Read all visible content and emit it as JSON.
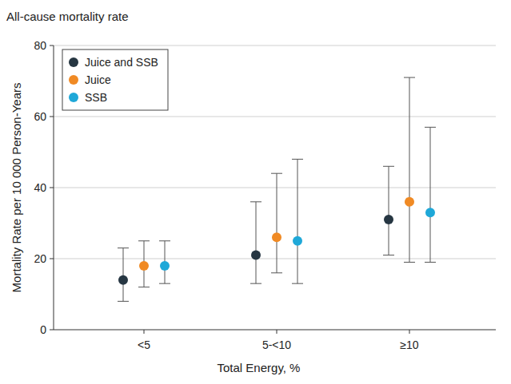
{
  "chart_data": {
    "type": "scatter",
    "title": "All-cause mortality rate",
    "x_label": "Total Energy, %",
    "y_label": "Mortality Rate per 10 000 Person-Years",
    "categories": [
      "<5",
      "5-<10",
      "≥10"
    ],
    "series": [
      {
        "name": "Juice and SSB",
        "color": "#263642",
        "marker": "circle",
        "values": [
          14,
          21,
          31
        ],
        "ci_lower": [
          8,
          13,
          21
        ],
        "ci_upper": [
          23,
          36,
          46
        ]
      },
      {
        "name": "Juice",
        "color": "#f08a24",
        "marker": "circle",
        "values": [
          18,
          26,
          36
        ],
        "ci_lower": [
          12,
          16,
          19
        ],
        "ci_upper": [
          25,
          44,
          71
        ]
      },
      {
        "name": "SSB",
        "color": "#1fa8d8",
        "marker": "circle",
        "values": [
          18,
          25,
          33
        ],
        "ci_lower": [
          13,
          13,
          19
        ],
        "ci_upper": [
          25,
          48,
          57
        ]
      }
    ],
    "ylim": [
      0,
      80
    ],
    "yticks": [
      0,
      20,
      40,
      60,
      80
    ],
    "grid": true,
    "legend": "upper left"
  }
}
